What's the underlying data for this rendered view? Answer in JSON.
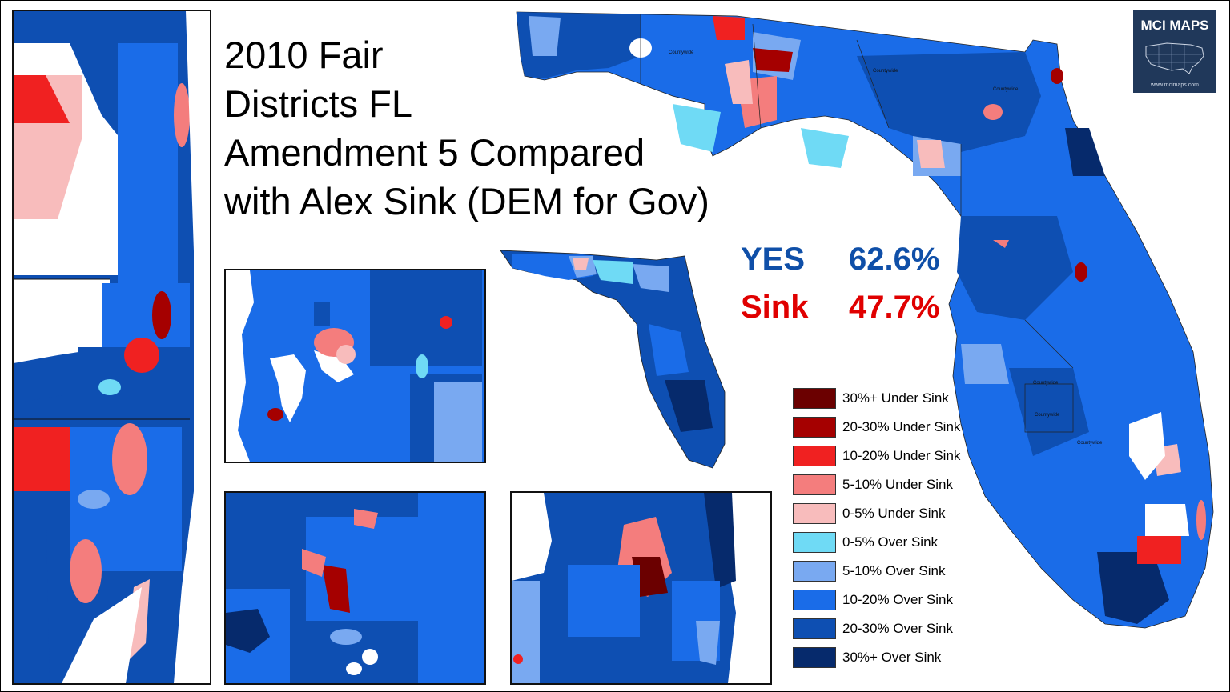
{
  "title": {
    "line1": "2010 Fair",
    "line2": "Districts FL",
    "line3": "Amendment 5 Compared",
    "line4": "with Alex Sink (DEM for Gov)"
  },
  "results": {
    "yes_label": "YES",
    "yes_value": "62.6%",
    "sink_label": "Sink",
    "sink_value": "47.7%"
  },
  "badge": {
    "title": "MCI MAPS",
    "url": "www.mcimaps.com"
  },
  "map_labels": {
    "countywide_1": "Countywide",
    "countywide_2": "Countywide",
    "countywide_3": "Countywide",
    "countywide_4": "Countywide",
    "countywide_5": "Countywide",
    "countywide_6": "Countywide"
  },
  "legend": [
    {
      "label": "30%+ Under Sink",
      "color": "#6b0000"
    },
    {
      "label": "20-30% Under Sink",
      "color": "#a50000"
    },
    {
      "label": "10-20% Under Sink",
      "color": "#f02121"
    },
    {
      "label": "5-10% Under Sink",
      "color": "#f47d7d"
    },
    {
      "label": "0-5% Under Sink",
      "color": "#f8bcbc"
    },
    {
      "label": "0-5% Over Sink",
      "color": "#6fdaf5"
    },
    {
      "label": "5-10% Over Sink",
      "color": "#79a9f1"
    },
    {
      "label": "10-20% Over Sink",
      "color": "#1a6ce8"
    },
    {
      "label": "20-30% Over Sink",
      "color": "#0e4fb2"
    },
    {
      "label": "30%+ Over Sink",
      "color": "#062a6c"
    }
  ],
  "colors": {
    "yes": "#0f4fa8",
    "sink": "#e00000",
    "background": "#ffffff"
  }
}
